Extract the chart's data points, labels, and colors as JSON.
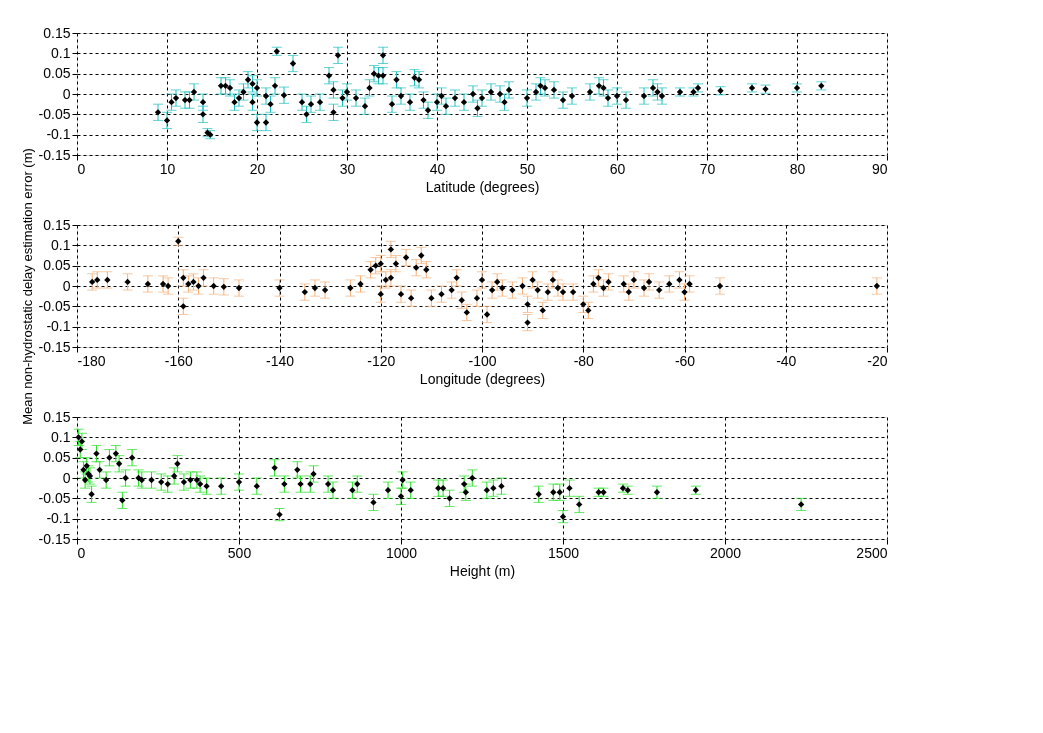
{
  "chart_data": [
    {
      "type": "scatter",
      "xlabel": "Latitude (degrees)",
      "xlim": [
        0,
        90
      ],
      "xticks": [
        0,
        10,
        20,
        30,
        40,
        50,
        60,
        70,
        80,
        90
      ],
      "ylim": [
        -0.15,
        0.15
      ],
      "yticks": [
        -0.15,
        -0.1,
        -0.05,
        0,
        0.05,
        0.1,
        0.15
      ],
      "grid": true,
      "marker": "diamond",
      "color": "#1fbfbf",
      "series": [
        {
          "color": "#000000",
          "x": [
            9,
            10,
            10.5,
            11,
            12,
            12.5,
            13,
            14,
            14,
            14.5,
            14.8,
            16,
            16.5,
            17,
            17.5,
            18,
            18.5,
            19,
            19.5,
            19.5,
            20,
            20,
            21,
            21,
            21.5,
            22,
            22.2,
            23,
            24,
            25,
            25.5,
            26,
            27,
            28,
            28.5,
            28.5,
            29,
            29.5,
            30,
            31,
            32,
            32.5,
            33,
            33.5,
            34,
            34,
            35,
            35.5,
            36,
            37,
            37.5,
            38,
            38.5,
            39,
            40,
            40.5,
            41,
            42,
            43,
            44,
            44.5,
            45,
            46,
            47,
            47.5,
            48,
            50,
            51,
            51.5,
            52,
            53,
            54,
            55,
            57,
            58,
            58.5,
            59,
            60,
            61,
            63,
            64,
            64.5,
            65,
            67,
            68.5,
            69,
            71.5,
            75,
            76.5,
            80,
            82.7
          ],
          "values": [
            -0.045,
            -0.065,
            -0.02,
            -0.01,
            -0.015,
            -0.015,
            0.005,
            -0.05,
            -0.02,
            -0.095,
            -0.1,
            0.02,
            0.02,
            0.015,
            -0.02,
            -0.01,
            0.005,
            0.035,
            -0.02,
            0.025,
            0.015,
            -0.07,
            -0.07,
            -0.005,
            -0.025,
            0.02,
            0.105,
            -0.003,
            0.075,
            -0.02,
            -0.05,
            -0.025,
            -0.02,
            0.045,
            0.01,
            -0.045,
            0.095,
            -0.01,
            0.005,
            -0.01,
            -0.03,
            0.015,
            0.05,
            0.045,
            0.095,
            0.045,
            -0.025,
            0.035,
            -0.005,
            -0.02,
            0.04,
            0.035,
            -0.015,
            -0.04,
            -0.02,
            -0.005,
            -0.03,
            -0.01,
            -0.02,
            0,
            -0.035,
            -0.01,
            0.005,
            0,
            -0.02,
            0.01,
            -0.01,
            0.005,
            0.02,
            0.015,
            0.01,
            -0.015,
            -0.005,
            0.005,
            0.02,
            0.015,
            -0.01,
            -0.005,
            -0.015,
            -0.005,
            0.015,
            0.005,
            -0.005,
            0.005,
            0.005,
            0.015,
            0.008,
            0.015,
            0.012,
            0.015,
            0.02
          ],
          "errors": [
            0.02,
            0.02,
            0.02,
            0.02,
            0.02,
            0.02,
            0.02,
            0.02,
            0.02,
            0.01,
            0.01,
            0.02,
            0.02,
            0.02,
            0.02,
            0.02,
            0.02,
            0.02,
            0.02,
            0.02,
            0.02,
            0.02,
            0.02,
            0.02,
            0.02,
            0.02,
            0.01,
            0.02,
            0.02,
            0.02,
            0.02,
            0.02,
            0.02,
            0.02,
            0.02,
            0.02,
            0.02,
            0.02,
            0.02,
            0.02,
            0.02,
            0.02,
            0.02,
            0.02,
            0.02,
            0.02,
            0.02,
            0.02,
            0.02,
            0.02,
            0.02,
            0.02,
            0.02,
            0.02,
            0.02,
            0.02,
            0.02,
            0.02,
            0.02,
            0.02,
            0.02,
            0.02,
            0.02,
            0.02,
            0.02,
            0.02,
            0.02,
            0.02,
            0.02,
            0.02,
            0.02,
            0.02,
            0.02,
            0.02,
            0.02,
            0.02,
            0.02,
            0.02,
            0.02,
            0.02,
            0.02,
            0.02,
            0.02,
            0.01,
            0.01,
            0.01,
            0.01,
            0.01,
            0.01,
            0.01,
            0.01
          ]
        }
      ]
    },
    {
      "type": "scatter",
      "xlabel": "Longitude (degrees)",
      "ylabel": "Mean non-hydrostatic delay estimation error (m)",
      "xlim": [
        -180,
        -20
      ],
      "xticks": [
        -180,
        -160,
        -140,
        -120,
        -100,
        -80,
        -60,
        -40,
        -20
      ],
      "ylim": [
        -0.15,
        0.15
      ],
      "yticks": [
        -0.15,
        -0.1,
        -0.05,
        0,
        0.05,
        0.1,
        0.15
      ],
      "grid": true,
      "marker": "diamond",
      "color": "#f5b07a",
      "series": [
        {
          "color": "#000000",
          "x": [
            -177,
            -176,
            -174,
            -170,
            -166,
            -163,
            -162,
            -160,
            -159,
            -159,
            -158,
            -157,
            -156,
            -155,
            -153,
            -151,
            -148,
            -140,
            -135,
            -133,
            -131,
            -126,
            -124,
            -122,
            -121,
            -120,
            -120,
            -119,
            -118,
            -118,
            -117,
            -116,
            -115,
            -114,
            -113,
            -112,
            -111,
            -110,
            -108,
            -106,
            -105,
            -104,
            -103,
            -101,
            -100,
            -99,
            -98,
            -97,
            -96,
            -94,
            -92,
            -91,
            -91,
            -90,
            -89,
            -88,
            -87,
            -86,
            -85,
            -84,
            -82,
            -80,
            -79,
            -78,
            -77,
            -76,
            -75,
            -72,
            -71,
            -70,
            -68,
            -67,
            -65,
            -63,
            -61,
            -60,
            -59,
            -53,
            -22
          ],
          "values": [
            0.01,
            0.015,
            0.015,
            0.01,
            0.005,
            0.005,
            0,
            0.11,
            0.02,
            -0.05,
            0.005,
            0.01,
            0,
            0.02,
            0,
            -0.002,
            -0.005,
            -0.005,
            -0.015,
            -0.005,
            -0.01,
            -0.005,
            0.005,
            0.04,
            0.05,
            0.055,
            -0.02,
            0.015,
            0.09,
            0.02,
            0.055,
            -0.02,
            0.07,
            -0.03,
            0.045,
            0.075,
            0.04,
            -0.03,
            -0.02,
            -0.01,
            0.02,
            -0.035,
            -0.065,
            -0.03,
            0.015,
            -0.07,
            -0.01,
            0.01,
            -0.005,
            -0.01,
            0,
            -0.045,
            -0.09,
            0.015,
            -0.01,
            -0.06,
            -0.015,
            0.015,
            -0.005,
            -0.015,
            -0.015,
            -0.045,
            -0.06,
            0.005,
            0.02,
            -0.005,
            0.01,
            0.005,
            -0.015,
            0.015,
            -0.005,
            0.01,
            -0.01,
            0.005,
            0.015,
            -0.015,
            0.005,
            0,
            0
          ],
          "errors": [
            0.02,
            0.02,
            0.02,
            0.02,
            0.02,
            0.02,
            0.02,
            0.01,
            0.02,
            0.02,
            0.02,
            0.02,
            0.02,
            0.02,
            0.02,
            0.02,
            0.02,
            0.02,
            0.02,
            0.02,
            0.02,
            0.02,
            0.02,
            0.02,
            0.02,
            0.02,
            0.02,
            0.02,
            0.02,
            0.02,
            0.02,
            0.02,
            0.02,
            0.02,
            0.02,
            0.02,
            0.02,
            0.02,
            0.02,
            0.02,
            0.02,
            0.02,
            0.02,
            0.02,
            0.02,
            0.02,
            0.02,
            0.02,
            0.02,
            0.02,
            0.02,
            0.02,
            0.02,
            0.02,
            0.02,
            0.02,
            0.02,
            0.02,
            0.02,
            0.02,
            0.02,
            0.02,
            0.02,
            0.02,
            0.02,
            0.02,
            0.02,
            0.02,
            0.02,
            0.02,
            0.02,
            0.02,
            0.02,
            0.02,
            0.02,
            0.02,
            0.02,
            0.02,
            0.02
          ]
        }
      ]
    },
    {
      "type": "scatter",
      "xlabel": "Height (m)",
      "xlim": [
        0,
        2500
      ],
      "xticks": [
        0,
        500,
        1000,
        1500,
        2000,
        2500
      ],
      "ylim": [
        -0.15,
        0.15
      ],
      "yticks": [
        -0.15,
        -0.1,
        -0.05,
        0,
        0.05,
        0.1,
        0.15
      ],
      "grid": true,
      "marker": "diamond",
      "color": "#22e022",
      "series": [
        {
          "color": "#000000",
          "x": [
            5,
            10,
            15,
            20,
            25,
            30,
            35,
            40,
            45,
            60,
            70,
            90,
            100,
            120,
            130,
            140,
            150,
            170,
            190,
            200,
            230,
            260,
            280,
            300,
            310,
            330,
            350,
            370,
            380,
            400,
            445,
            500,
            555,
            610,
            625,
            640,
            680,
            690,
            720,
            730,
            775,
            790,
            850,
            865,
            915,
            960,
            1000,
            1005,
            1030,
            1115,
            1130,
            1150,
            1195,
            1200,
            1220,
            1265,
            1285,
            1310,
            1425,
            1470,
            1490,
            1500,
            1520,
            1550,
            1610,
            1625,
            1685,
            1700,
            1790,
            1910,
            2235
          ],
          "values": [
            0.1,
            0.07,
            0.09,
            0.02,
            -0.005,
            0.03,
            0.01,
            0.005,
            -0.04,
            0.06,
            0.02,
            -0.005,
            0.05,
            0.06,
            0.035,
            -0.055,
            0,
            0.05,
            0,
            -0.005,
            -0.005,
            -0.01,
            -0.015,
            0.005,
            0.035,
            -0.01,
            -0.005,
            -0.005,
            -0.015,
            -0.02,
            -0.02,
            -0.01,
            -0.02,
            0.025,
            -0.09,
            -0.015,
            0.02,
            -0.015,
            -0.015,
            0.01,
            -0.015,
            -0.03,
            -0.03,
            -0.015,
            -0.06,
            -0.03,
            -0.045,
            -0.005,
            -0.03,
            -0.025,
            -0.025,
            -0.05,
            -0.015,
            -0.035,
            0,
            -0.03,
            -0.025,
            -0.02,
            -0.04,
            -0.035,
            -0.035,
            -0.095,
            -0.025,
            -0.065,
            -0.035,
            -0.035,
            -0.025,
            -0.03,
            -0.035,
            -0.03,
            -0.065
          ],
          "errors": [
            0.02,
            0.02,
            0.02,
            0.02,
            0.02,
            0.02,
            0.02,
            0.02,
            0.02,
            0.02,
            0.02,
            0.02,
            0.02,
            0.02,
            0.02,
            0.02,
            0.02,
            0.02,
            0.02,
            0.02,
            0.02,
            0.02,
            0.02,
            0.02,
            0.02,
            0.02,
            0.02,
            0.02,
            0.02,
            0.02,
            0.02,
            0.02,
            0.02,
            0.02,
            0.015,
            0.02,
            0.02,
            0.02,
            0.02,
            0.02,
            0.02,
            0.02,
            0.02,
            0.02,
            0.02,
            0.02,
            0.02,
            0.02,
            0.02,
            0.02,
            0.02,
            0.02,
            0.02,
            0.02,
            0.02,
            0.02,
            0.02,
            0.02,
            0.02,
            0.02,
            0.02,
            0.015,
            0.02,
            0.02,
            0.01,
            0.01,
            0.01,
            0.01,
            0.015,
            0.01,
            0.015
          ]
        }
      ]
    }
  ]
}
